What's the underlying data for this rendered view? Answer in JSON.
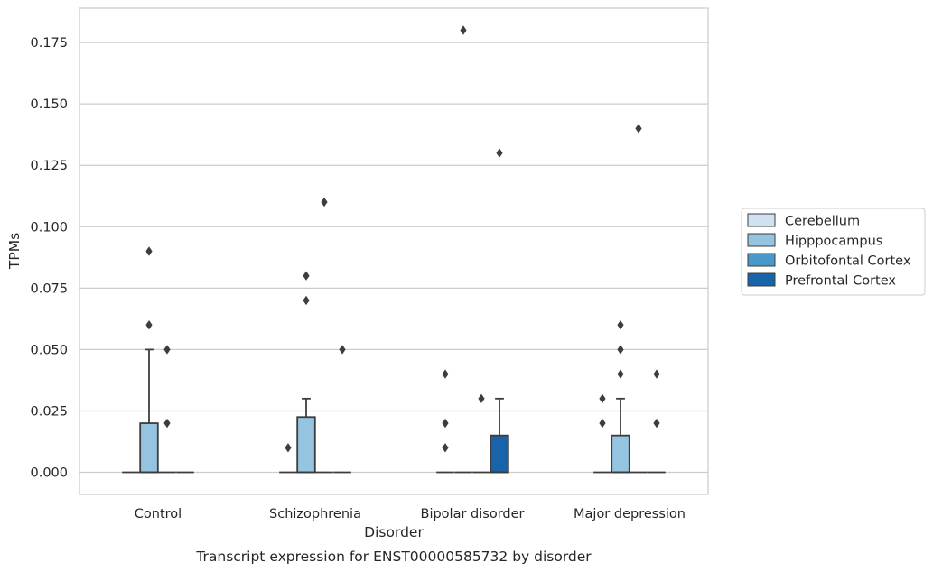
{
  "chart_data": {
    "type": "box",
    "title": "Transcript expression for ENST00000585732 by disorder",
    "xlabel": "Disorder",
    "ylabel": "TPMs",
    "ylim": [
      -0.009,
      0.189
    ],
    "yticks": [
      0.0,
      0.025,
      0.05,
      0.075,
      0.1,
      0.125,
      0.15,
      0.175
    ],
    "ytick_labels": [
      "0.000",
      "0.025",
      "0.050",
      "0.075",
      "0.100",
      "0.125",
      "0.150",
      "0.175"
    ],
    "categories": [
      "Control",
      "Schizophrenia",
      "Bipolar disorder",
      "Major depression"
    ],
    "grid": "horizontal",
    "legend_position": "right",
    "series": [
      {
        "name": "Cerebellum",
        "color": "#d0e1f2",
        "boxes": [
          {
            "q1": 0,
            "median": 0,
            "q3": 0,
            "whisker_low": 0,
            "whisker_high": 0,
            "outliers": []
          },
          {
            "q1": 0,
            "median": 0,
            "q3": 0,
            "whisker_low": 0,
            "whisker_high": 0,
            "outliers": [
              0.01
            ]
          },
          {
            "q1": 0,
            "median": 0,
            "q3": 0,
            "whisker_low": 0,
            "whisker_high": 0,
            "outliers": [
              0.01,
              0.02,
              0.04
            ]
          },
          {
            "q1": 0,
            "median": 0,
            "q3": 0,
            "whisker_low": 0,
            "whisker_high": 0,
            "outliers": [
              0.02,
              0.03
            ]
          }
        ]
      },
      {
        "name": "Hipppocampus",
        "color": "#94c4df",
        "boxes": [
          {
            "q1": 0,
            "median": 0,
            "q3": 0.02,
            "whisker_low": 0,
            "whisker_high": 0.05,
            "outliers": [
              0.06,
              0.09
            ]
          },
          {
            "q1": 0,
            "median": 0,
            "q3": 0.0225,
            "whisker_low": 0,
            "whisker_high": 0.03,
            "outliers": [
              0.07,
              0.08
            ]
          },
          {
            "q1": 0,
            "median": 0,
            "q3": 0,
            "whisker_low": 0,
            "whisker_high": 0,
            "outliers": [
              0.18
            ]
          },
          {
            "q1": 0,
            "median": 0,
            "q3": 0.015,
            "whisker_low": 0,
            "whisker_high": 0.03,
            "outliers": [
              0.04,
              0.05,
              0.06
            ]
          }
        ]
      },
      {
        "name": "Orbitofontal Cortex",
        "color": "#4a98c9",
        "boxes": [
          {
            "q1": 0,
            "median": 0,
            "q3": 0,
            "whisker_low": 0,
            "whisker_high": 0,
            "outliers": [
              0.02,
              0.05
            ]
          },
          {
            "q1": 0,
            "median": 0,
            "q3": 0,
            "whisker_low": 0,
            "whisker_high": 0,
            "outliers": [
              0.11
            ]
          },
          {
            "q1": 0,
            "median": 0,
            "q3": 0,
            "whisker_low": 0,
            "whisker_high": 0,
            "outliers": [
              0.03
            ]
          },
          {
            "q1": 0,
            "median": 0,
            "q3": 0,
            "whisker_low": 0,
            "whisker_high": 0,
            "outliers": [
              0.14
            ]
          }
        ]
      },
      {
        "name": "Prefrontal Cortex",
        "color": "#1764ab",
        "boxes": [
          {
            "q1": 0,
            "median": 0,
            "q3": 0,
            "whisker_low": 0,
            "whisker_high": 0,
            "outliers": []
          },
          {
            "q1": 0,
            "median": 0,
            "q3": 0,
            "whisker_low": 0,
            "whisker_high": 0,
            "outliers": [
              0.05
            ]
          },
          {
            "q1": 0,
            "median": 0,
            "q3": 0.015,
            "whisker_low": 0,
            "whisker_high": 0.03,
            "outliers": [
              0.13
            ]
          },
          {
            "q1": 0,
            "median": 0,
            "q3": 0,
            "whisker_low": 0,
            "whisker_high": 0,
            "outliers": [
              0.02,
              0.04
            ]
          }
        ]
      }
    ]
  }
}
